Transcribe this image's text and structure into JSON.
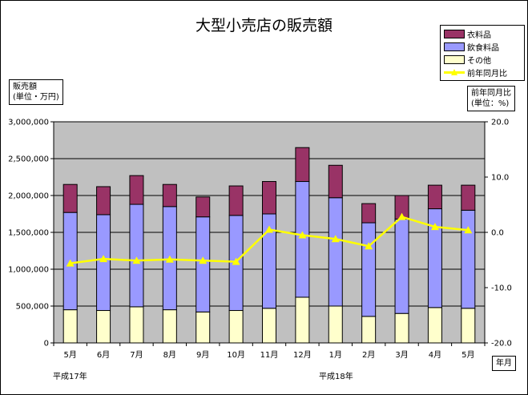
{
  "chart_data": {
    "type": "bar",
    "title": "大型小売店の販売額",
    "categories": [
      "5月",
      "6月",
      "7月",
      "8月",
      "9月",
      "10月",
      "11月",
      "12月",
      "1月",
      "2月",
      "3月",
      "4月",
      "5月"
    ],
    "series": [
      {
        "name": "その他",
        "kind": "stacked-bar",
        "color": "#ffffcc",
        "values": [
          450000,
          440000,
          490000,
          450000,
          420000,
          440000,
          470000,
          620000,
          500000,
          360000,
          400000,
          480000,
          470000
        ]
      },
      {
        "name": "飲食料品",
        "kind": "stacked-bar",
        "color": "#9999ff",
        "values": [
          1320000,
          1300000,
          1390000,
          1400000,
          1290000,
          1290000,
          1280000,
          1570000,
          1470000,
          1270000,
          1280000,
          1340000,
          1330000
        ]
      },
      {
        "name": "衣料品",
        "kind": "stacked-bar",
        "color": "#993366",
        "values": [
          380000,
          380000,
          390000,
          300000,
          270000,
          400000,
          440000,
          460000,
          440000,
          260000,
          320000,
          320000,
          340000
        ]
      },
      {
        "name": "前年同月比",
        "kind": "line",
        "axis": "right",
        "color": "#ffff00",
        "values": [
          -5.6,
          -4.8,
          -5.1,
          -4.9,
          -5.1,
          -5.3,
          0.5,
          -0.5,
          -1.2,
          -2.5,
          2.8,
          1.0,
          0.4
        ]
      }
    ],
    "ylim": [
      0,
      3000000
    ],
    "y_ticks": [
      "0",
      "500,000",
      "1,000,000",
      "1,500,000",
      "2,000,000",
      "2,500,000",
      "3,000,000"
    ],
    "y2lim": [
      -20,
      20
    ],
    "y2_ticks": [
      "-20.0",
      "-10.0",
      "0.0",
      "10.0",
      "20.0"
    ],
    "ylabel": [
      "販売額",
      "(単位・万円)"
    ],
    "y2label": [
      "前年同月比",
      "(単位：%)"
    ],
    "xlabel": "年月",
    "era_labels": [
      "平成17年",
      "平成18年"
    ],
    "legend_position": "top-right",
    "grid": true,
    "plot_background": "#c0c0c0"
  }
}
